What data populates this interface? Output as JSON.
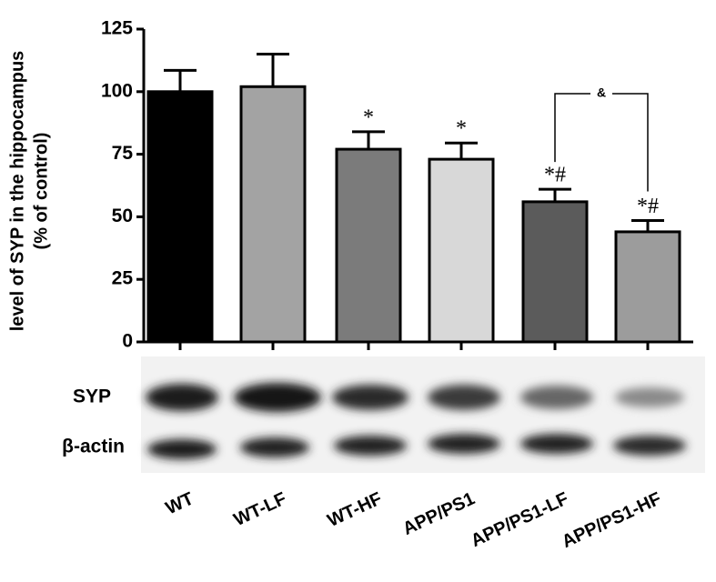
{
  "chart_data": {
    "type": "bar",
    "ylabel": [
      "level of SYP in the hippocampus",
      "(% of control)"
    ],
    "categories": [
      "WT",
      "WT-LF",
      "WT-HF",
      "APP/PS1",
      "APP/PS1-LF",
      "APP/PS1-HF"
    ],
    "values": [
      100,
      102,
      77,
      73,
      56,
      44
    ],
    "errors": [
      8.5,
      13,
      7,
      6.5,
      5,
      4.5
    ],
    "colors": [
      "#000000",
      "#a3a3a3",
      "#7b7b7b",
      "#d8d8d8",
      "#5b5b5b",
      "#9c9c9c"
    ],
    "annotations": [
      null,
      null,
      "*",
      "*",
      "*#",
      "*#"
    ],
    "bracket": {
      "from": 4,
      "to": 5,
      "label": "&"
    },
    "ylim": [
      0,
      125
    ],
    "yticks": [
      0,
      25,
      50,
      75,
      100,
      125
    ],
    "blot_labels": [
      "SYP",
      "β-actin"
    ]
  }
}
